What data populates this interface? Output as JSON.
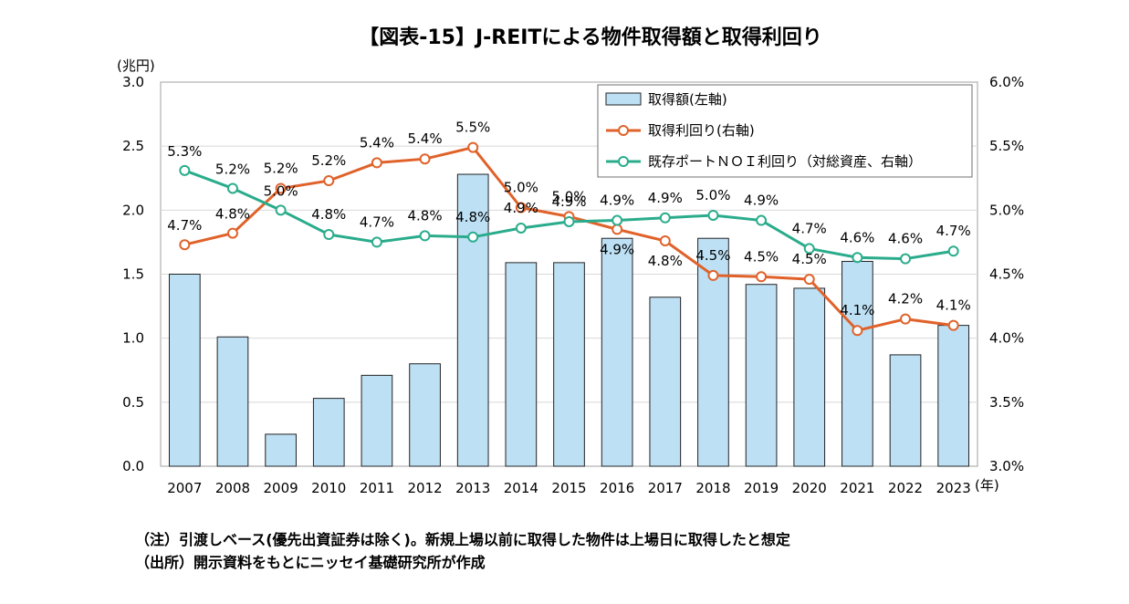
{
  "chart_data": {
    "type": "bar+line",
    "title": "【図表-15】J-REITによる物件取得額と取得利回り",
    "left_axis_unit": "(兆円)",
    "x_axis_unit": "(年)",
    "categories": [
      "2007",
      "2008",
      "2009",
      "2010",
      "2011",
      "2012",
      "2013",
      "2014",
      "2015",
      "2016",
      "2017",
      "2018",
      "2019",
      "2020",
      "2021",
      "2022",
      "2023"
    ],
    "left_ylim": [
      0,
      3.0
    ],
    "left_ticks": [
      "0.0",
      "0.5",
      "1.0",
      "1.5",
      "2.0",
      "2.5",
      "3.0"
    ],
    "right_ylim": [
      3.0,
      6.0
    ],
    "right_ticks": [
      "3.0%",
      "3.5%",
      "4.0%",
      "4.5%",
      "5.0%",
      "5.5%",
      "6.0%"
    ],
    "series": [
      {
        "name": "取得額(左軸)",
        "type": "bar",
        "axis": "left",
        "color": "#bde0f5",
        "values": [
          1.5,
          1.01,
          0.25,
          0.53,
          0.71,
          0.8,
          2.28,
          1.59,
          1.59,
          1.78,
          1.32,
          1.78,
          1.42,
          1.39,
          1.6,
          0.87,
          1.1
        ]
      },
      {
        "name": "取得利回り(右軸)",
        "type": "line",
        "axis": "right",
        "color": "#e0622a",
        "values": [
          4.73,
          4.82,
          5.17,
          5.23,
          5.37,
          5.4,
          5.49,
          5.02,
          4.95,
          4.85,
          4.76,
          4.49,
          4.48,
          4.46,
          4.06,
          4.15,
          4.1
        ],
        "labels": [
          "4.7%",
          "4.8%",
          "5.2%",
          "5.2%",
          "5.4%",
          "5.4%",
          "5.5%",
          "5.0%",
          "5.0%",
          "4.9%",
          "4.8%",
          "4.5%",
          "4.5%",
          "4.5%",
          "4.1%",
          "4.2%",
          "4.1%"
        ]
      },
      {
        "name": "既存ポートＮＯＩ利回り（対総資産、右軸）",
        "type": "line",
        "axis": "right",
        "color": "#2aac8c",
        "values": [
          5.31,
          5.17,
          5.0,
          4.81,
          4.75,
          4.8,
          4.79,
          4.86,
          4.91,
          4.92,
          4.94,
          4.96,
          4.92,
          4.7,
          4.63,
          4.62,
          4.68
        ],
        "labels": [
          "5.3%",
          "5.2%",
          "5.0%",
          "4.8%",
          "4.7%",
          "4.8%",
          "4.8%",
          "4.9%",
          "4.9%",
          "4.9%",
          "4.9%",
          "5.0%",
          "4.9%",
          "4.7%",
          "4.6%",
          "4.6%",
          "4.7%"
        ]
      }
    ],
    "legend_position": "top-right"
  },
  "notes": [
    "（注）引渡しベース(優先出資証券は除く)。新規上場以前に取得した物件は上場日に取得したと想定",
    "（出所）開示資料をもとにニッセイ基礎研究所が作成"
  ]
}
